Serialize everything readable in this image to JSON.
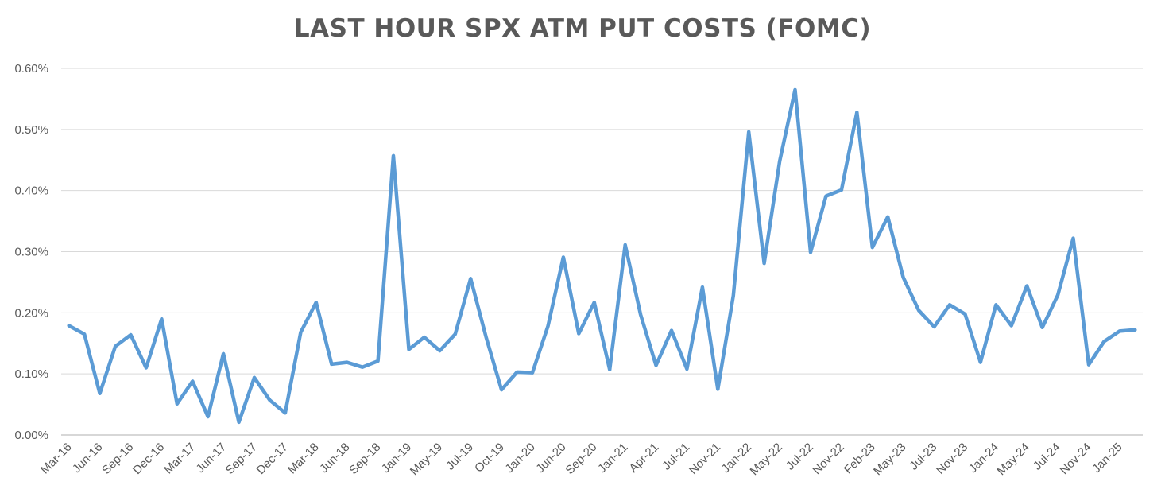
{
  "chart_data": {
    "type": "line",
    "title": "LAST HOUR SPX ATM PUT COSTS (FOMC)",
    "xlabel": "",
    "ylabel": "",
    "ylim": [
      0,
      0.6
    ],
    "y_unit": "%",
    "yticks": [
      "0.00%",
      "0.10%",
      "0.20%",
      "0.30%",
      "0.40%",
      "0.50%",
      "0.60%"
    ],
    "grid": "horizontal",
    "x_tick_labels": [
      "Mar-16",
      "Jun-16",
      "Sep-16",
      "Dec-16",
      "Mar-17",
      "Jun-17",
      "Sep-17",
      "Dec-17",
      "Mar-18",
      "Jun-18",
      "Sep-18",
      "Jan-19",
      "May-19",
      "Jul-19",
      "Oct-19",
      "Jan-20",
      "Jun-20",
      "Sep-20",
      "Jan-21",
      "Apr-21",
      "Jul-21",
      "Nov-21",
      "Jan-22",
      "May-22",
      "Jul-22",
      "Nov-22",
      "Feb-23",
      "May-23",
      "Jul-23",
      "Nov-23",
      "Jan-24",
      "May-24",
      "Jul-24",
      "Nov-24",
      "Jan-25"
    ],
    "series": [
      {
        "color": "#5B9BD5",
        "values": [
          0.179,
          0.165,
          0.068,
          0.145,
          0.164,
          0.11,
          0.19,
          0.051,
          0.088,
          0.03,
          0.133,
          0.021,
          0.094,
          0.057,
          0.036,
          0.168,
          0.217,
          0.116,
          0.119,
          0.111,
          0.121,
          0.457,
          0.14,
          0.16,
          0.138,
          0.165,
          0.256,
          0.16,
          0.074,
          0.103,
          0.102,
          0.178,
          0.291,
          0.166,
          0.217,
          0.107,
          0.311,
          0.197,
          0.114,
          0.171,
          0.108,
          0.242,
          0.075,
          0.228,
          0.496,
          0.281,
          0.448,
          0.565,
          0.299,
          0.391,
          0.401,
          0.528,
          0.307,
          0.357,
          0.258,
          0.204,
          0.177,
          0.213,
          0.198,
          0.119,
          0.213,
          0.179,
          0.244,
          0.176,
          0.229,
          0.322,
          0.115,
          0.153,
          0.17,
          0.172
        ]
      }
    ]
  }
}
